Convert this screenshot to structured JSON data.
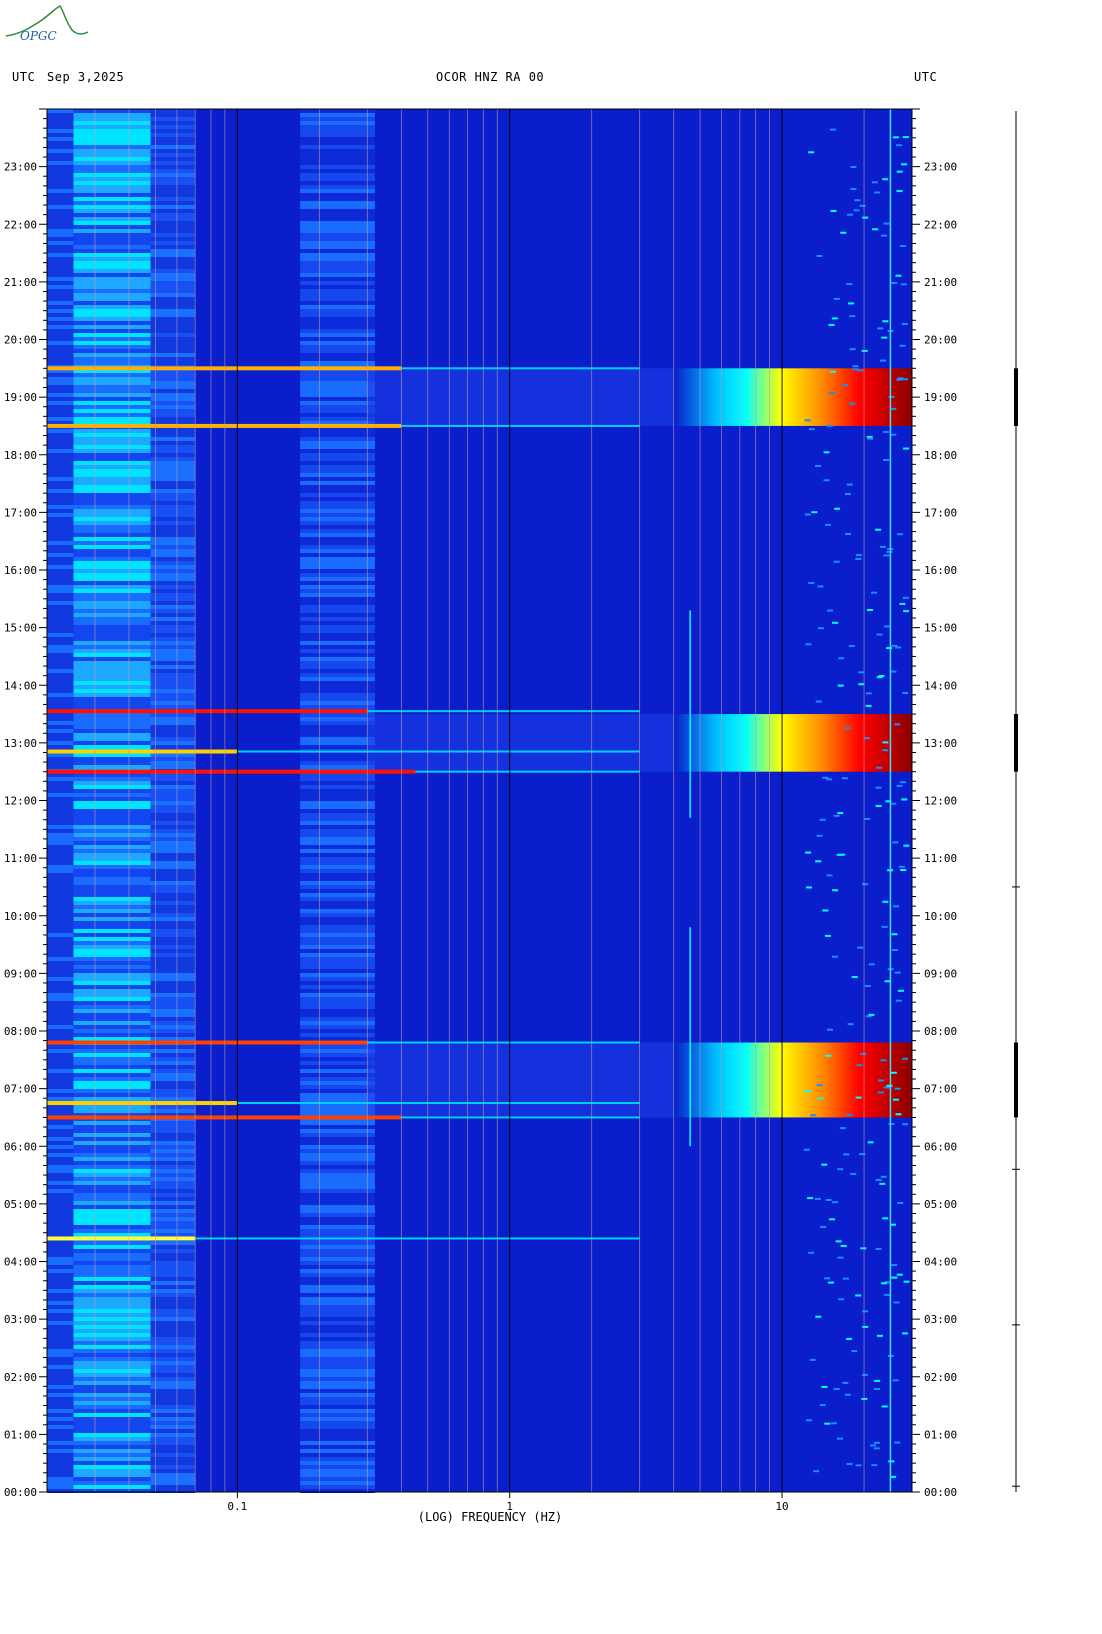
{
  "header": {
    "left_tz": "UTC",
    "date": "Sep 3,2025",
    "station": "OCOR HNZ RA 00",
    "right_tz": "UTC",
    "logo_text": "OPGC"
  },
  "chart_data": {
    "type": "heatmap",
    "title": "OCOR HNZ RA 00",
    "xlabel": "(LOG) FREQUENCY (HZ)",
    "ylabel": "",
    "x_scale": "log",
    "xlim": [
      0.02,
      30
    ],
    "x_ticks": [
      {
        "value": 0.1,
        "label": "0.1"
      },
      {
        "value": 1,
        "label": "1"
      },
      {
        "value": 10,
        "label": "10"
      }
    ],
    "ylim": [
      0,
      24
    ],
    "y_unit": "hours UTC",
    "y_ticks": [
      {
        "value": 0,
        "label": "00:00"
      },
      {
        "value": 1,
        "label": "01:00"
      },
      {
        "value": 2,
        "label": "02:00"
      },
      {
        "value": 3,
        "label": "03:00"
      },
      {
        "value": 4,
        "label": "04:00"
      },
      {
        "value": 5,
        "label": "05:00"
      },
      {
        "value": 6,
        "label": "06:00"
      },
      {
        "value": 7,
        "label": "07:00"
      },
      {
        "value": 8,
        "label": "08:00"
      },
      {
        "value": 9,
        "label": "09:00"
      },
      {
        "value": 10,
        "label": "10:00"
      },
      {
        "value": 11,
        "label": "11:00"
      },
      {
        "value": 12,
        "label": "12:00"
      },
      {
        "value": 13,
        "label": "13:00"
      },
      {
        "value": 14,
        "label": "14:00"
      },
      {
        "value": 15,
        "label": "15:00"
      },
      {
        "value": 16,
        "label": "16:00"
      },
      {
        "value": 17,
        "label": "17:00"
      },
      {
        "value": 18,
        "label": "18:00"
      },
      {
        "value": 19,
        "label": "19:00"
      },
      {
        "value": 20,
        "label": "20:00"
      },
      {
        "value": 21,
        "label": "21:00"
      },
      {
        "value": 22,
        "label": "22:00"
      },
      {
        "value": 23,
        "label": "23:00"
      }
    ],
    "colormap": [
      "#00008b",
      "#0000ff",
      "#00bfff",
      "#00ffff",
      "#ffff00",
      "#ff8c00",
      "#ff0000",
      "#8b0000"
    ],
    "background_color": "#0a1ecc",
    "high_energy_bands": [
      {
        "start_hour": 6.5,
        "end_hour": 7.8,
        "min_freq": 4,
        "peak_freq": 20
      },
      {
        "start_hour": 12.5,
        "end_hour": 13.5,
        "min_freq": 4,
        "peak_freq": 20
      },
      {
        "start_hour": 18.5,
        "end_hour": 19.5,
        "min_freq": 4,
        "peak_freq": 20
      }
    ],
    "horizontal_lines": [
      {
        "hour": 6.5,
        "max_freq": 0.4,
        "color": "#ff4000"
      },
      {
        "hour": 6.75,
        "max_freq": 0.1,
        "color": "#ffd000"
      },
      {
        "hour": 7.8,
        "max_freq": 0.3,
        "color": "#ff4000"
      },
      {
        "hour": 12.5,
        "max_freq": 0.45,
        "color": "#ff1000"
      },
      {
        "hour": 12.85,
        "max_freq": 0.1,
        "color": "#ffd000"
      },
      {
        "hour": 13.55,
        "max_freq": 0.3,
        "color": "#ff1000"
      },
      {
        "hour": 18.5,
        "max_freq": 0.4,
        "color": "#ffb000"
      },
      {
        "hour": 19.5,
        "max_freq": 0.4,
        "color": "#ffb000"
      },
      {
        "hour": 4.4,
        "max_freq": 0.07,
        "color": "#ffff40"
      }
    ]
  }
}
